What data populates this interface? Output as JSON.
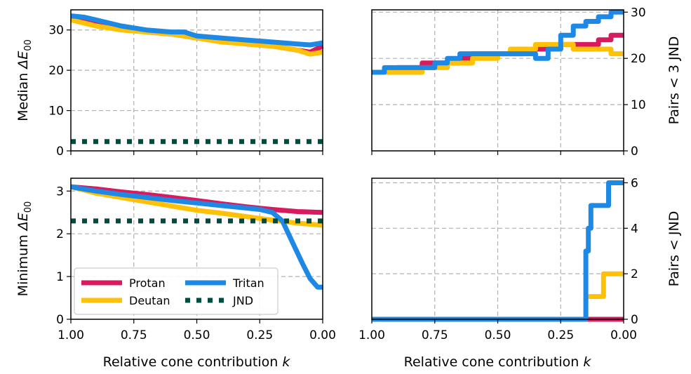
{
  "colors": {
    "protan": "#d81b60",
    "deutan": "#ffc107",
    "tritan": "#1e88e5",
    "jnd": "#004d40"
  },
  "chart_data": [
    {
      "type": "line",
      "ylabel_prefix": "Median ",
      "ylabel_sym": "ΔE",
      "ylabel_sub": "00",
      "xlim": [
        1.0,
        0.0
      ],
      "ylim": [
        0,
        35
      ],
      "xticks": [
        "1.00",
        "0.75",
        "0.50",
        "0.25",
        "0.00"
      ],
      "yticks": [
        "0",
        "10",
        "20",
        "30"
      ],
      "ytick_values": [
        0,
        10,
        20,
        30
      ],
      "series": [
        {
          "key": "protan",
          "x": [
            1.0,
            0.9,
            0.8,
            0.7,
            0.6,
            0.5,
            0.4,
            0.3,
            0.2,
            0.1,
            0.05,
            0.0
          ],
          "y": [
            33,
            31.5,
            30.5,
            29.5,
            29,
            28,
            27.5,
            26.5,
            26,
            25,
            24.5,
            26
          ]
        },
        {
          "key": "deutan",
          "x": [
            1.0,
            0.9,
            0.8,
            0.7,
            0.6,
            0.5,
            0.4,
            0.3,
            0.2,
            0.1,
            0.05,
            0.0
          ],
          "y": [
            32.5,
            31,
            30,
            29.5,
            29,
            28,
            27,
            26.5,
            26,
            25,
            24,
            24.5
          ]
        },
        {
          "key": "tritan",
          "x": [
            1.0,
            0.95,
            0.9,
            0.8,
            0.7,
            0.6,
            0.55,
            0.5,
            0.4,
            0.3,
            0.2,
            0.1,
            0.05,
            0.0
          ],
          "y": [
            33.5,
            33.2,
            32.5,
            31,
            30,
            29.5,
            29.5,
            28.5,
            28,
            27.5,
            27,
            26.5,
            26.3,
            26.8
          ]
        },
        {
          "key": "jnd",
          "dotted": true,
          "x": [
            1.0,
            0.0
          ],
          "y": [
            2.3,
            2.3
          ]
        }
      ]
    },
    {
      "type": "line",
      "ylabel": "Pairs  <  3 JND",
      "xlim": [
        1.0,
        0.0
      ],
      "ylim": [
        0,
        30.5
      ],
      "xticks": [
        "1.00",
        "0.75",
        "0.50",
        "0.25",
        "0.00"
      ],
      "yticks": [
        "0",
        "10",
        "20",
        "30"
      ],
      "ytick_values": [
        0,
        10,
        20,
        30
      ],
      "series": [
        {
          "key": "protan",
          "step": true,
          "x": [
            1.0,
            0.9,
            0.8,
            0.7,
            0.65,
            0.6,
            0.5,
            0.4,
            0.3,
            0.25,
            0.2,
            0.1,
            0.05,
            0.0
          ],
          "y": [
            17,
            18,
            19,
            19,
            20,
            21,
            21,
            22,
            22,
            23,
            23,
            24,
            25,
            25
          ]
        },
        {
          "key": "deutan",
          "step": true,
          "x": [
            1.0,
            0.9,
            0.8,
            0.7,
            0.6,
            0.5,
            0.45,
            0.35,
            0.25,
            0.2,
            0.05,
            0.0
          ],
          "y": [
            17,
            17,
            18,
            19,
            20,
            21,
            22,
            23,
            23,
            22,
            21,
            21
          ]
        },
        {
          "key": "tritan",
          "step": true,
          "x": [
            1.0,
            0.95,
            0.85,
            0.75,
            0.7,
            0.65,
            0.6,
            0.5,
            0.4,
            0.35,
            0.3,
            0.25,
            0.2,
            0.15,
            0.1,
            0.05,
            0.0
          ],
          "y": [
            17,
            18,
            18,
            19,
            20,
            21,
            21,
            21,
            21,
            20,
            22,
            25,
            27,
            28,
            29,
            30,
            30
          ]
        }
      ]
    },
    {
      "type": "line",
      "ylabel_prefix": "Minimum ",
      "ylabel_sym": "ΔE",
      "ylabel_sub": "00",
      "xlim": [
        1.0,
        0.0
      ],
      "ylim": [
        0,
        3.3
      ],
      "xticks": [
        "1.00",
        "0.75",
        "0.50",
        "0.25",
        "0.00"
      ],
      "yticks": [
        "0",
        "1",
        "2",
        "3"
      ],
      "ytick_values": [
        0,
        1,
        2,
        3
      ],
      "series": [
        {
          "key": "protan",
          "x": [
            1.0,
            0.9,
            0.8,
            0.7,
            0.6,
            0.5,
            0.4,
            0.3,
            0.2,
            0.1,
            0.0
          ],
          "y": [
            3.1,
            3.05,
            2.98,
            2.92,
            2.85,
            2.78,
            2.7,
            2.63,
            2.57,
            2.52,
            2.5
          ]
        },
        {
          "key": "deutan",
          "x": [
            1.0,
            0.9,
            0.8,
            0.7,
            0.6,
            0.5,
            0.4,
            0.3,
            0.2,
            0.1,
            0.0
          ],
          "y": [
            3.1,
            2.95,
            2.85,
            2.75,
            2.65,
            2.55,
            2.48,
            2.4,
            2.32,
            2.25,
            2.2
          ]
        },
        {
          "key": "tritan",
          "x": [
            1.0,
            0.9,
            0.8,
            0.7,
            0.6,
            0.5,
            0.4,
            0.3,
            0.25,
            0.2,
            0.16,
            0.12,
            0.08,
            0.05,
            0.02,
            0.0
          ],
          "y": [
            3.1,
            3.0,
            2.92,
            2.85,
            2.78,
            2.72,
            2.66,
            2.6,
            2.57,
            2.5,
            2.3,
            1.8,
            1.3,
            0.95,
            0.75,
            0.75
          ]
        },
        {
          "key": "jnd",
          "dotted": true,
          "x": [
            1.0,
            0.0
          ],
          "y": [
            2.3,
            2.3
          ]
        }
      ],
      "legend": {
        "placement": "lower-left",
        "entries": [
          {
            "key": "protan",
            "label": "Protan"
          },
          {
            "key": "deutan",
            "label": "Deutan"
          },
          {
            "key": "tritan",
            "label": "Tritan"
          },
          {
            "key": "jnd",
            "label": "JND"
          }
        ]
      }
    },
    {
      "type": "line",
      "ylabel": "Pairs  < JND",
      "xlim": [
        1.0,
        0.0
      ],
      "ylim": [
        0,
        6.2
      ],
      "xticks": [
        "1.00",
        "0.75",
        "0.50",
        "0.25",
        "0.00"
      ],
      "yticks": [
        "0",
        "2",
        "4",
        "6"
      ],
      "ytick_values": [
        0,
        2,
        4,
        6
      ],
      "series": [
        {
          "key": "protan",
          "step": true,
          "x": [
            1.0,
            0.0
          ],
          "y": [
            0,
            0
          ]
        },
        {
          "key": "deutan",
          "step": true,
          "x": [
            1.0,
            0.17,
            0.15,
            0.08,
            0.0
          ],
          "y": [
            0,
            0,
            1,
            2,
            2
          ]
        },
        {
          "key": "tritan",
          "step": true,
          "x": [
            1.0,
            0.17,
            0.15,
            0.14,
            0.13,
            0.06,
            0.0
          ],
          "y": [
            0,
            0,
            3,
            4,
            5,
            6,
            6
          ]
        }
      ]
    }
  ],
  "shared_xlabel": "Relative cone contribution ",
  "shared_xlabel_k": "k"
}
